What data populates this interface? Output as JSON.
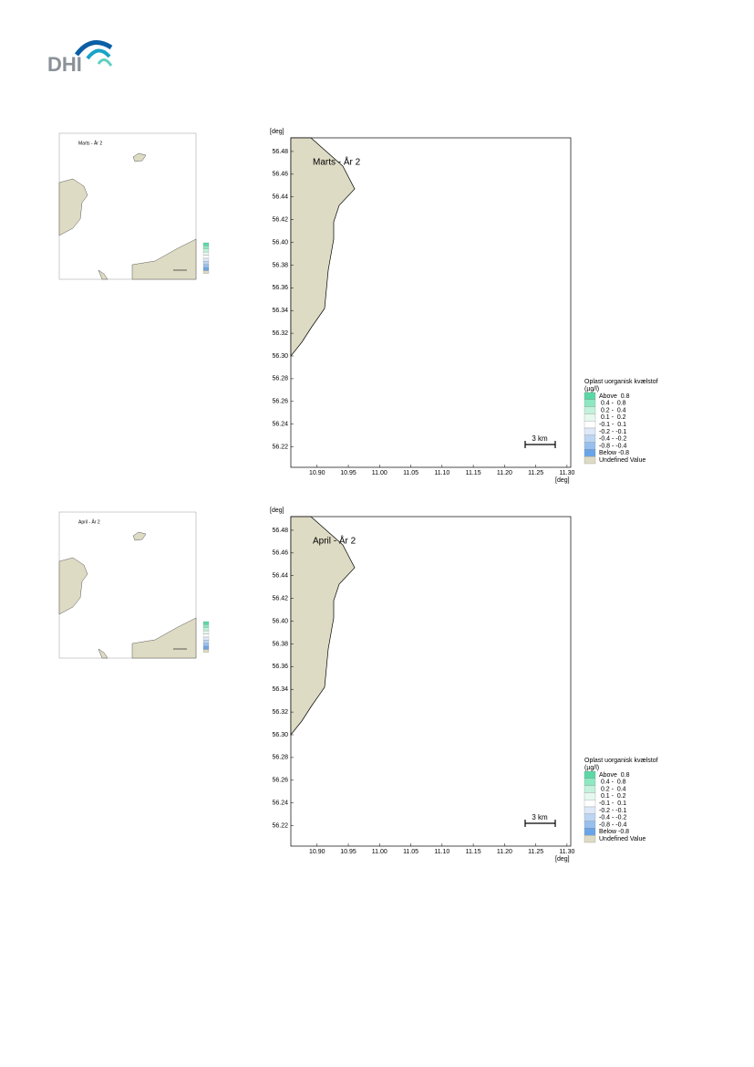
{
  "header": {
    "logo": "DHI"
  },
  "figures": [
    {
      "map": {
        "title": "Marts - År 2",
        "y_unit": "[deg]",
        "x_unit": "[deg]",
        "xlim": [
          10.858,
          11.306
        ],
        "ylim": [
          56.202,
          56.492
        ],
        "xticks": [
          {
            "value": 10.9,
            "label": "10.90"
          },
          10.95,
          {
            "value": 11,
            "label": "11.00"
          },
          11.05,
          {
            "value": 11.1,
            "label": "11.10"
          },
          11.15,
          {
            "value": 11.2,
            "label": "11.20"
          },
          11.25,
          {
            "value": 11.3,
            "label": "11.30"
          }
        ],
        "yticks": [
          56.22,
          56.24,
          56.26,
          56.28,
          {
            "value": 56.3,
            "label": "56.30"
          },
          56.32,
          56.34,
          56.36,
          56.38,
          {
            "value": 56.4,
            "label": "56.40"
          },
          56.42,
          56.44,
          56.46,
          56.48
        ],
        "scale_bar": "3 km",
        "legend": {
          "title": "Oplast uorganisk kvælstof",
          "unit": "(µg/l)",
          "items": [
            {
              "label": "Above  0.8",
              "color": "#5ad9a6"
            },
            {
              "label": " 0.4 -  0.8",
              "color": "#8ee8c0"
            },
            {
              "label": " 0.2 -  0.4",
              "color": "#c3f2dc"
            },
            {
              "label": " 0.1 -  0.2",
              "color": "#e6f9ef"
            },
            {
              "label": "-0.1 -  0.1",
              "color": "#ffffff"
            },
            {
              "label": "-0.2 - -0.1",
              "color": "#dde9f8"
            },
            {
              "label": "-0.4 - -0.2",
              "color": "#bcd5f3"
            },
            {
              "label": "-0.8 - -0.4",
              "color": "#98c0ee"
            },
            {
              "label": "Below -0.8",
              "color": "#6aa4e8"
            },
            {
              "label": "Undefined Value",
              "color": "#dedbc4"
            }
          ]
        }
      }
    },
    {
      "map": {
        "title": "April - År 2",
        "y_unit": "[deg]",
        "x_unit": "[deg]",
        "xlim": [
          10.858,
          11.306
        ],
        "ylim": [
          56.202,
          56.492
        ],
        "xticks": [
          {
            "value": 10.9,
            "label": "10.90"
          },
          10.95,
          {
            "value": 11,
            "label": "11.00"
          },
          11.05,
          {
            "value": 11.1,
            "label": "11.10"
          },
          11.15,
          {
            "value": 11.2,
            "label": "11.20"
          },
          11.25,
          {
            "value": 11.3,
            "label": "11.30"
          }
        ],
        "yticks": [
          56.22,
          56.24,
          56.26,
          56.28,
          {
            "value": 56.3,
            "label": "56.30"
          },
          56.32,
          56.34,
          56.36,
          56.38,
          {
            "value": 56.4,
            "label": "56.40"
          },
          56.42,
          56.44,
          56.46,
          56.48
        ],
        "scale_bar": "3 km",
        "legend": {
          "title": "Oplast uorganisk kvælstof",
          "unit": "(µg/l)",
          "items": [
            {
              "label": "Above  0.8",
              "color": "#5ad9a6"
            },
            {
              "label": " 0.4 -  0.8",
              "color": "#8ee8c0"
            },
            {
              "label": " 0.2 -  0.4",
              "color": "#c3f2dc"
            },
            {
              "label": " 0.1 -  0.2",
              "color": "#e6f9ef"
            },
            {
              "label": "-0.1 -  0.1",
              "color": "#ffffff"
            },
            {
              "label": "-0.2 - -0.1",
              "color": "#dde9f8"
            },
            {
              "label": "-0.4 - -0.2",
              "color": "#bcd5f3"
            },
            {
              "label": "-0.8 - -0.4",
              "color": "#98c0ee"
            },
            {
              "label": "Below -0.8",
              "color": "#6aa4e8"
            },
            {
              "label": "Undefined Value",
              "color": "#dedbc4"
            }
          ]
        }
      }
    }
  ]
}
